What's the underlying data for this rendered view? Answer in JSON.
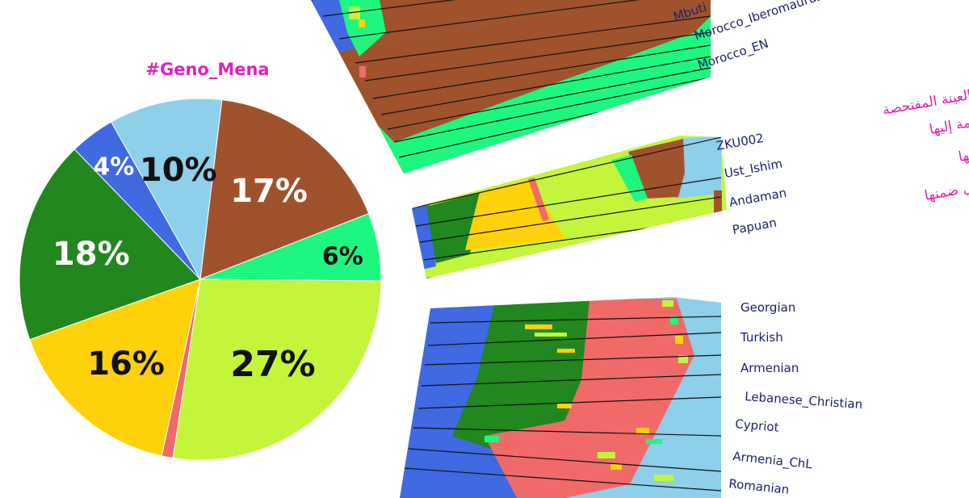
{
  "chart_data": {
    "type": "pie",
    "title": "#Geno_Mena",
    "slices": [
      {
        "name": "Dark brown",
        "value": 17,
        "color": "#a0522d",
        "label": "17%",
        "label_color": "#ffffff"
      },
      {
        "name": "Spring green",
        "value": 6,
        "color": "#1ef77f",
        "label": "6%",
        "label_color": "#111111"
      },
      {
        "name": "Lime",
        "value": 27,
        "color": "#c3f53b",
        "label": "27%",
        "label_color": "#111111"
      },
      {
        "name": "Salmon",
        "value": 1,
        "color": "#f06a6a",
        "label": "",
        "label_color": "#111111"
      },
      {
        "name": "Gold",
        "value": 16,
        "color": "#ffd10a",
        "label": "16%",
        "label_color": "#111111"
      },
      {
        "name": "Forest green",
        "value": 18,
        "color": "#21871e",
        "label": "18%",
        "label_color": "#ffffff"
      },
      {
        "name": "Royal blue",
        "value": 4,
        "color": "#4169e1",
        "label": "4%",
        "label_color": "#ffffff"
      },
      {
        "name": "Sky blue",
        "value": 10,
        "color": "#8ecfea",
        "label": "10%",
        "label_color": "#111111"
      }
    ],
    "populations_top": [
      "Mbuti",
      "Morocco_Iberomaurusian",
      "Morocco_EN"
    ],
    "sample_rows": [
      "ZKU002",
      "Ust_Ishim",
      "Andaman",
      "Papuan"
    ],
    "sample_annotations": [
      "العينة المفتحصة",
      "أقرب عينة قديمة إليها",
      "أقرب العينات الحديثة إليها",
      "المكون الرئيسي ضمنها"
    ],
    "populations_bottom": [
      "Georgian",
      "Turkish",
      "Armenian",
      "Lebanese_Christian",
      "Cypriot",
      "Armenia_ChL",
      "Romanian"
    ]
  }
}
